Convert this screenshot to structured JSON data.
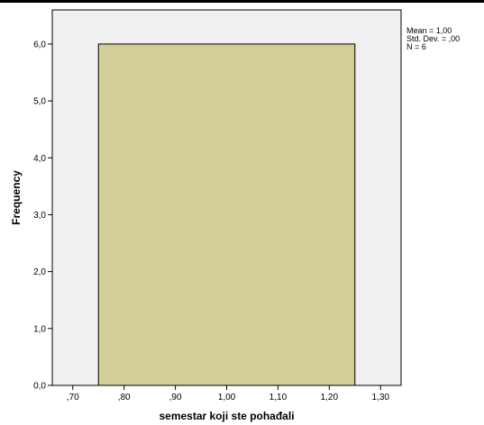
{
  "chart_data": {
    "type": "bar",
    "subtype": "histogram",
    "xlabel": "semestar koji ste pohađali",
    "ylabel": "Frequency",
    "xlim": [
      0.66,
      1.34
    ],
    "ylim": [
      0,
      6.6
    ],
    "xticks": [
      0.7,
      0.8,
      0.9,
      1.0,
      1.1,
      1.2,
      1.3
    ],
    "xtick_labels": [
      ",70",
      ",80",
      ",90",
      "1,00",
      "1,10",
      "1,20",
      "1,30"
    ],
    "yticks": [
      0,
      1,
      2,
      3,
      4,
      5,
      6
    ],
    "ytick_labels": [
      "0,0",
      "1,0",
      "2,0",
      "3,0",
      "4,0",
      "5,0",
      "6,0"
    ],
    "bins": [
      {
        "x0": 0.75,
        "x1": 1.25,
        "value": 6
      }
    ],
    "grid": false,
    "colors": {
      "plot_background": "#f0f0f0",
      "bar_fill": "#d3ce97",
      "bar_stroke": "#000000",
      "axis": "#000000"
    },
    "stats": {
      "mean": "Mean = 1,00",
      "std_dev": "Std. Dev. = ,00",
      "n": "N = 6"
    },
    "legend_placement": "top-right"
  }
}
